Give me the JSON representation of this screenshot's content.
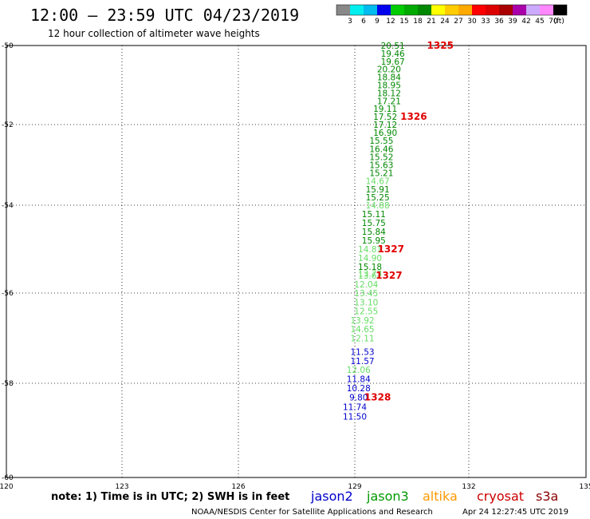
{
  "header": {
    "title": "12:00 – 23:59 UTC 04/23/2019",
    "subtitle": "12 hour collection of altimeter wave heights"
  },
  "color_scale": {
    "labels": [
      "3",
      "6",
      "9",
      "12",
      "15",
      "18",
      "21",
      "24",
      "27",
      "30",
      "33",
      "36",
      "39",
      "42",
      "45",
      "70"
    ],
    "unit": "(ft)",
    "colors": [
      "#888888",
      "#00eeee",
      "#00bbee",
      "#0000ee",
      "#00cc00",
      "#00aa00",
      "#008800",
      "#ffff00",
      "#ffcc00",
      "#ffaa00",
      "#ff0000",
      "#dd0000",
      "#aa0000",
      "#aa00aa",
      "#ccaaff",
      "#ff88ff",
      "#000000"
    ]
  },
  "chart_data": {
    "type": "scatter",
    "xlim": [
      120,
      135
    ],
    "ylim": [
      -60,
      -50
    ],
    "x_ticks": [
      "120",
      "123",
      "126",
      "129",
      "132",
      "135"
    ],
    "y_ticks": [
      "-50",
      "-52",
      "-54",
      "-56",
      "-58",
      "-60"
    ],
    "grid": true,
    "points": [
      {
        "x": 130.0,
        "y": -50.0,
        "v": "20.51",
        "c": "#008800"
      },
      {
        "x": 130.0,
        "y": -50.2,
        "v": "19.46",
        "c": "#008800"
      },
      {
        "x": 130.0,
        "y": -50.4,
        "v": "19.67",
        "c": "#008800"
      },
      {
        "x": 129.9,
        "y": -50.6,
        "v": "20.20",
        "c": "#008800"
      },
      {
        "x": 129.9,
        "y": -50.8,
        "v": "18.84",
        "c": "#008800"
      },
      {
        "x": 129.9,
        "y": -51.0,
        "v": "18.95",
        "c": "#008800"
      },
      {
        "x": 129.9,
        "y": -51.2,
        "v": "18.12",
        "c": "#008800"
      },
      {
        "x": 129.9,
        "y": -51.4,
        "v": "17.21",
        "c": "#008800"
      },
      {
        "x": 129.8,
        "y": -51.6,
        "v": "19.11",
        "c": "#008800"
      },
      {
        "x": 129.8,
        "y": -51.8,
        "v": "17.52",
        "c": "#008800"
      },
      {
        "x": 129.8,
        "y": -52.0,
        "v": "17.12",
        "c": "#008800"
      },
      {
        "x": 129.8,
        "y": -52.2,
        "v": "16.90",
        "c": "#008800"
      },
      {
        "x": 129.7,
        "y": -52.4,
        "v": "15.55",
        "c": "#008800"
      },
      {
        "x": 129.7,
        "y": -52.6,
        "v": "16.46",
        "c": "#008800"
      },
      {
        "x": 129.7,
        "y": -52.8,
        "v": "15.52",
        "c": "#008800"
      },
      {
        "x": 129.7,
        "y": -53.0,
        "v": "15.63",
        "c": "#008800"
      },
      {
        "x": 129.7,
        "y": -53.2,
        "v": "15.21",
        "c": "#008800"
      },
      {
        "x": 129.6,
        "y": -53.4,
        "v": "14.67",
        "c": "#66dd66"
      },
      {
        "x": 129.6,
        "y": -53.6,
        "v": "15.91",
        "c": "#008800"
      },
      {
        "x": 129.6,
        "y": -53.8,
        "v": "15.25",
        "c": "#008800"
      },
      {
        "x": 129.6,
        "y": -54.0,
        "v": "14.88",
        "c": "#66dd66"
      },
      {
        "x": 129.5,
        "y": -54.2,
        "v": "15.11",
        "c": "#008800"
      },
      {
        "x": 129.5,
        "y": -54.4,
        "v": "15.75",
        "c": "#008800"
      },
      {
        "x": 129.5,
        "y": -54.6,
        "v": "15.84",
        "c": "#008800"
      },
      {
        "x": 129.5,
        "y": -54.8,
        "v": "15.95",
        "c": "#008800"
      },
      {
        "x": 129.4,
        "y": -55.0,
        "v": "14.81",
        "c": "#66dd66"
      },
      {
        "x": 129.4,
        "y": -55.2,
        "v": "14.90",
        "c": "#66dd66"
      },
      {
        "x": 129.4,
        "y": -55.4,
        "v": "15.18",
        "c": "#008800"
      },
      {
        "x": 129.4,
        "y": -55.55,
        "v": "13.73",
        "c": "#66dd66"
      },
      {
        "x": 129.4,
        "y": -55.6,
        "v": "13.62",
        "c": "#66dd66"
      },
      {
        "x": 129.3,
        "y": -55.8,
        "v": "12.04",
        "c": "#66dd66"
      },
      {
        "x": 129.3,
        "y": -56.0,
        "v": "13.45",
        "c": "#66dd66"
      },
      {
        "x": 129.3,
        "y": -56.2,
        "v": "13.10",
        "c": "#66dd66"
      },
      {
        "x": 129.3,
        "y": -56.4,
        "v": "12.55",
        "c": "#66dd66"
      },
      {
        "x": 129.2,
        "y": -56.6,
        "v": "13.92",
        "c": "#66dd66"
      },
      {
        "x": 129.2,
        "y": -56.8,
        "v": "14.65",
        "c": "#66dd66"
      },
      {
        "x": 129.2,
        "y": -57.0,
        "v": "12.11",
        "c": "#66dd66"
      },
      {
        "x": 129.2,
        "y": -57.3,
        "v": "11.53",
        "c": "#0000cc"
      },
      {
        "x": 129.2,
        "y": -57.5,
        "v": "11.57",
        "c": "#0000cc"
      },
      {
        "x": 129.1,
        "y": -57.7,
        "v": "12.06",
        "c": "#66dd66"
      },
      {
        "x": 129.1,
        "y": -57.9,
        "v": "11.84",
        "c": "#0000cc"
      },
      {
        "x": 129.1,
        "y": -58.1,
        "v": "10.28",
        "c": "#0000cc"
      },
      {
        "x": 129.1,
        "y": -58.3,
        "v": "9.80",
        "c": "#0000cc"
      },
      {
        "x": 129.0,
        "y": -58.5,
        "v": "11.74",
        "c": "#0000cc"
      },
      {
        "x": 129.0,
        "y": -58.7,
        "v": "11.50",
        "c": "#0000cc"
      }
    ],
    "pass_labels": [
      {
        "x": 131.25,
        "y": -50.0,
        "text": "1325"
      },
      {
        "x": 130.55,
        "y": -51.8,
        "text": "1326"
      },
      {
        "x": 129.95,
        "y": -55.0,
        "text": "1327"
      },
      {
        "x": 129.9,
        "y": -55.6,
        "text": "1327"
      },
      {
        "x": 129.6,
        "y": -58.3,
        "text": "1328"
      }
    ]
  },
  "footer": {
    "note": "note: 1) Time is in UTC; 2) SWH is in feet",
    "satellites": [
      {
        "name": "jason2",
        "color": "#0000cc"
      },
      {
        "name": "jason3",
        "color": "#009900"
      },
      {
        "name": "altika",
        "color": "#ff9900"
      },
      {
        "name": "cryosat",
        "color": "#cc0000"
      },
      {
        "name": "s3a",
        "color": "#8b0000"
      }
    ],
    "credit": "NOAA/NESDIS Center for Satellite Applications and Research",
    "timestamp": "Apr 24 12:27:45 UTC 2019"
  }
}
